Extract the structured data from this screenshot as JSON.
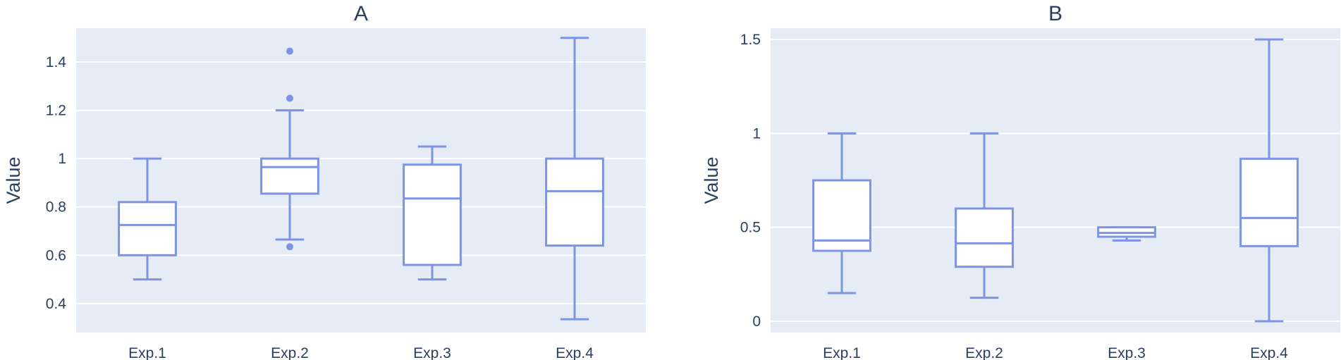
{
  "colors": {
    "box": "#7f93e3",
    "plot_bg": "#e5ecf6",
    "grid": "#ffffff",
    "text": "#2a3f5f"
  },
  "chart_data": [
    {
      "type": "box",
      "title": "A",
      "ylabel": "Value",
      "xlabel": "",
      "ylim": [
        0.28,
        1.54
      ],
      "yticks": [
        0.4,
        0.6,
        0.8,
        1.0,
        1.2,
        1.4
      ],
      "ytick_labels": [
        "0.4",
        "0.6",
        "0.8",
        "1",
        "1.2",
        "1.4"
      ],
      "grid": true,
      "categories": [
        "Exp.1",
        "Exp.2",
        "Exp.3",
        "Exp.4"
      ],
      "boxes": [
        {
          "category": "Exp.1",
          "lowerfence": 0.5,
          "q1": 0.6,
          "median": 0.725,
          "q3": 0.82,
          "upperfence": 1.0,
          "outliers": []
        },
        {
          "category": "Exp.2",
          "lowerfence": 0.665,
          "q1": 0.855,
          "median": 0.965,
          "q3": 1.0,
          "upperfence": 1.2,
          "outliers": [
            0.635,
            1.25,
            1.445
          ]
        },
        {
          "category": "Exp.3",
          "lowerfence": 0.5,
          "q1": 0.56,
          "median": 0.835,
          "q3": 0.975,
          "upperfence": 1.05,
          "outliers": []
        },
        {
          "category": "Exp.4",
          "lowerfence": 0.335,
          "q1": 0.64,
          "median": 0.865,
          "q3": 1.0,
          "upperfence": 1.5,
          "outliers": []
        }
      ]
    },
    {
      "type": "box",
      "title": "B",
      "ylabel": "Value",
      "xlabel": "",
      "ylim": [
        -0.06,
        1.56
      ],
      "yticks": [
        0,
        0.5,
        1.0,
        1.5
      ],
      "ytick_labels": [
        "0",
        "0.5",
        "1",
        "1.5"
      ],
      "grid": true,
      "categories": [
        "Exp.1",
        "Exp.2",
        "Exp.3",
        "Exp.4"
      ],
      "boxes": [
        {
          "category": "Exp.1",
          "lowerfence": 0.15,
          "q1": 0.375,
          "median": 0.43,
          "q3": 0.75,
          "upperfence": 1.0,
          "outliers": []
        },
        {
          "category": "Exp.2",
          "lowerfence": 0.125,
          "q1": 0.29,
          "median": 0.415,
          "q3": 0.6,
          "upperfence": 1.0,
          "outliers": []
        },
        {
          "category": "Exp.3",
          "lowerfence": 0.43,
          "q1": 0.45,
          "median": 0.47,
          "q3": 0.5,
          "upperfence": 0.5,
          "outliers": []
        },
        {
          "category": "Exp.4",
          "lowerfence": 0.0,
          "q1": 0.4,
          "median": 0.55,
          "q3": 0.865,
          "upperfence": 1.5,
          "outliers": []
        }
      ]
    }
  ]
}
